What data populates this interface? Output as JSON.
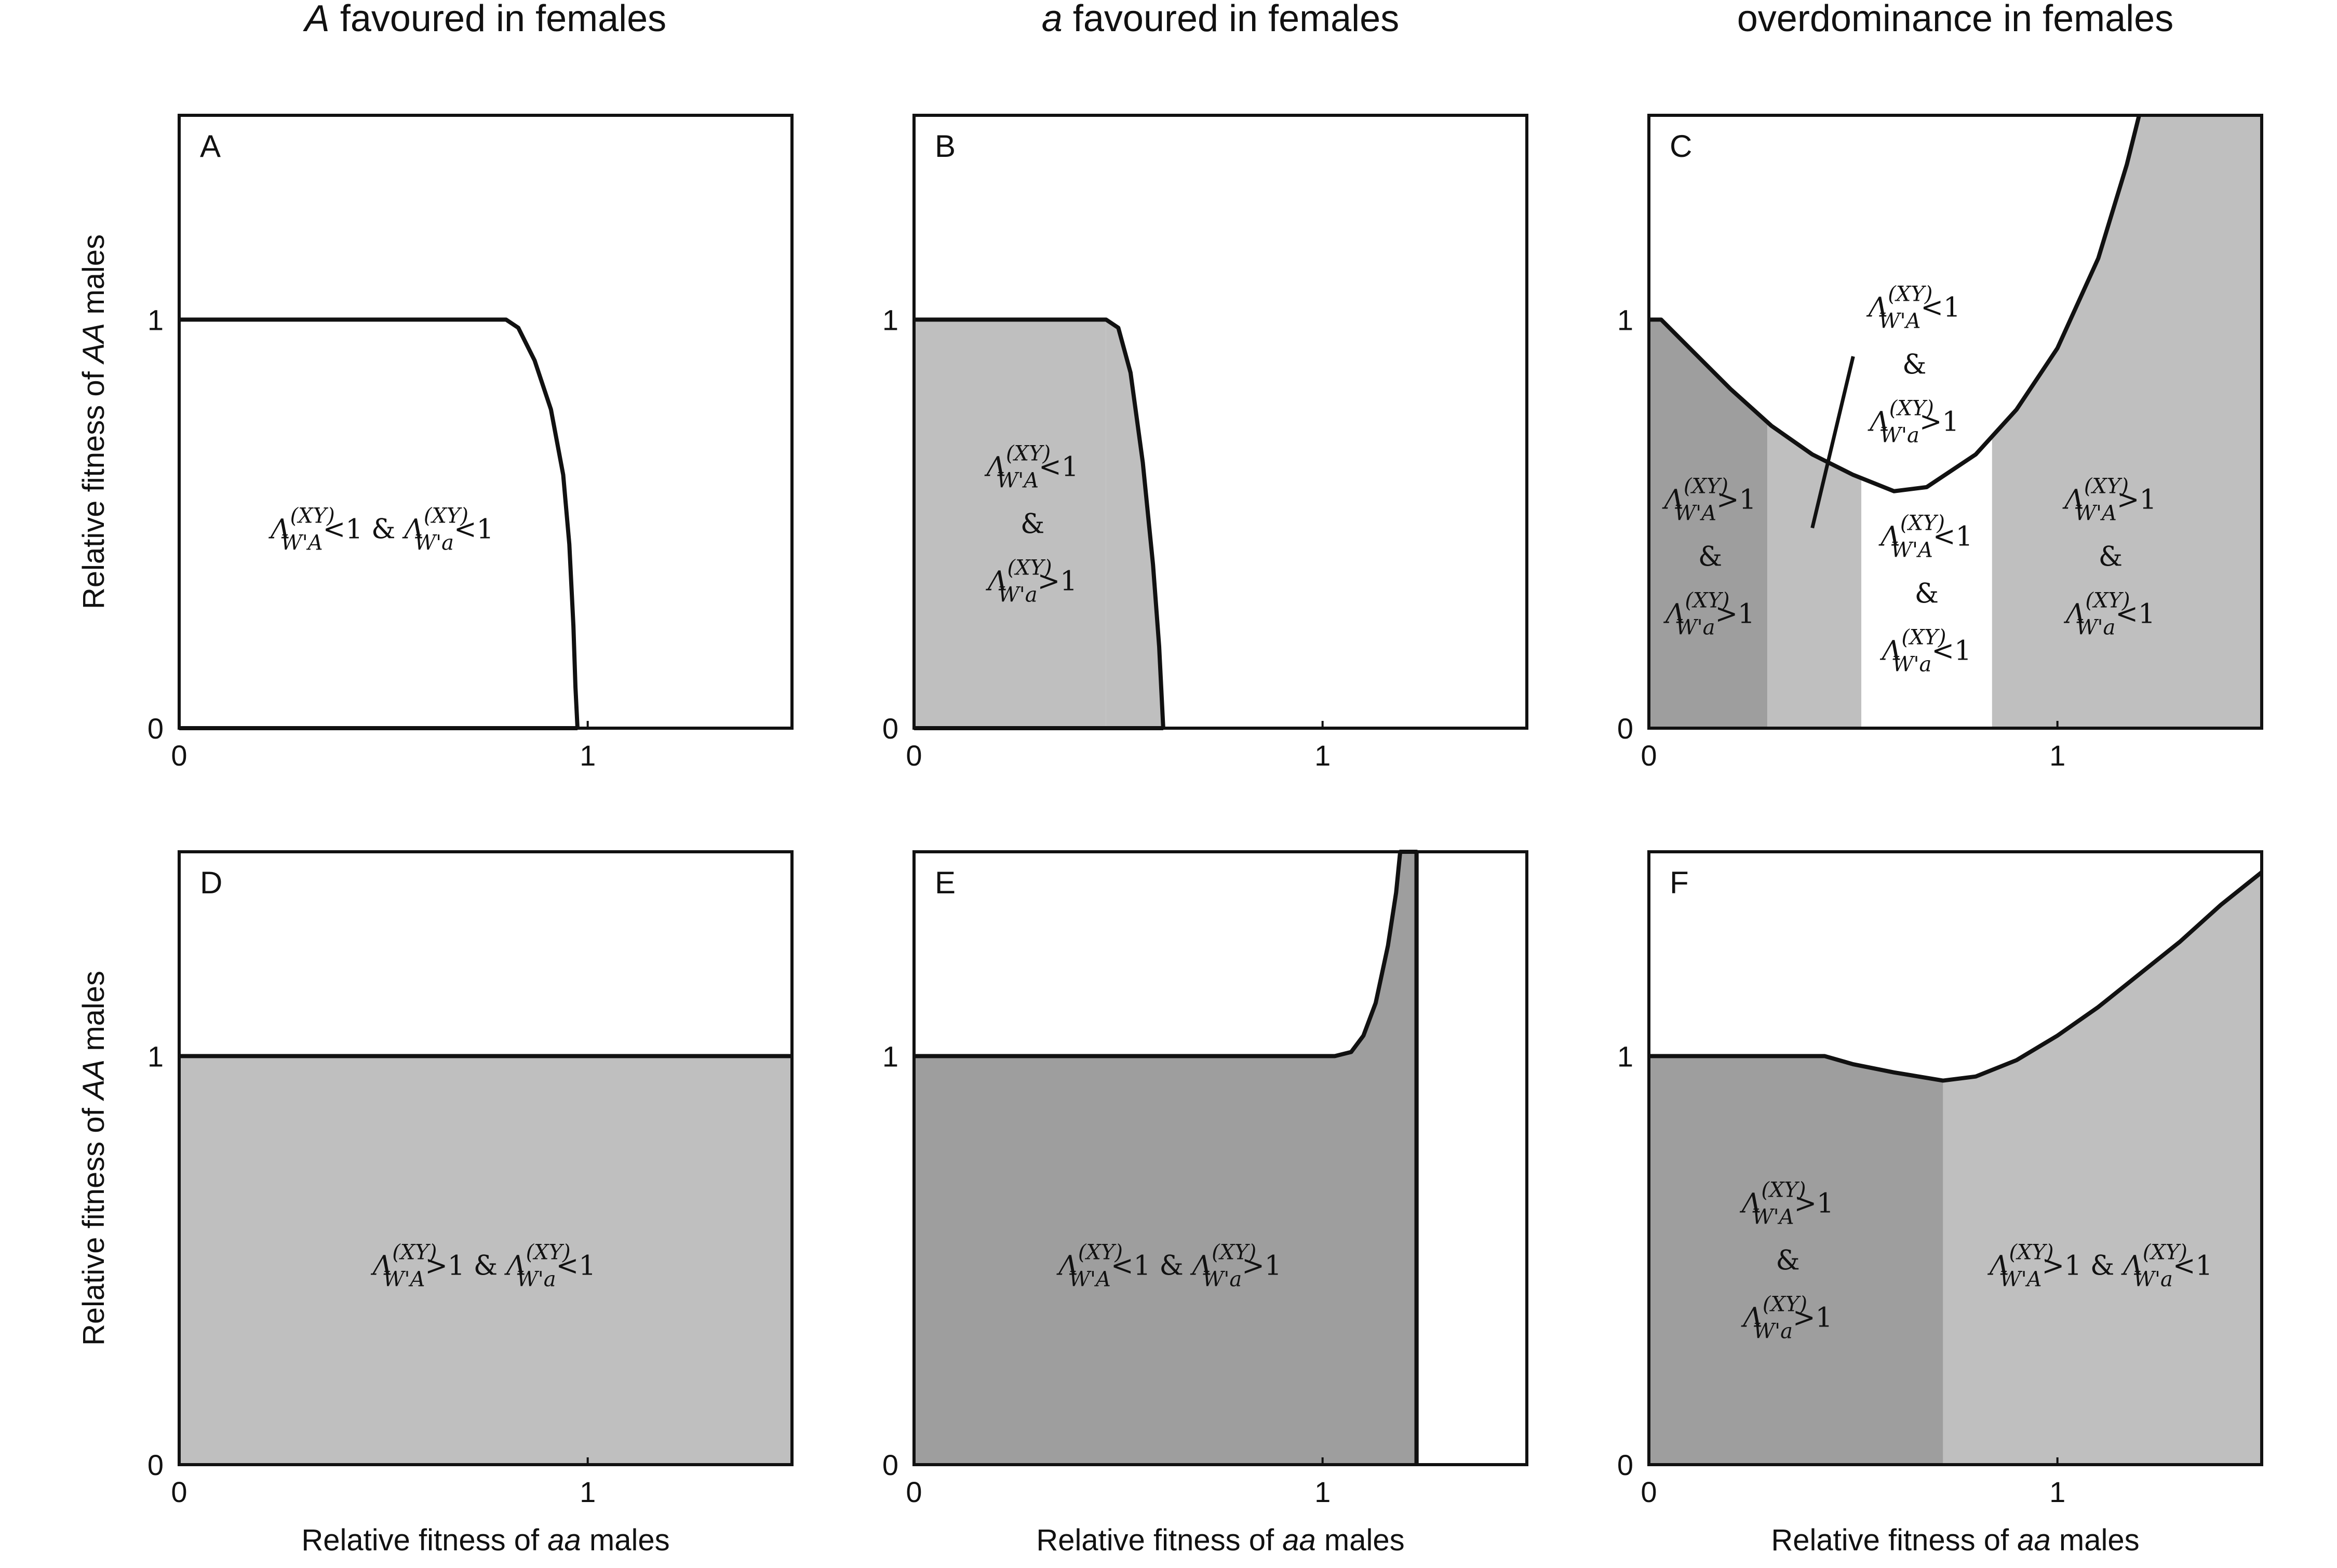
{
  "column_titles": [
    {
      "italic": "A",
      "rest": " favoured in females"
    },
    {
      "italic": "a",
      "rest": " favoured in females"
    },
    {
      "italic": "",
      "rest": "overdominance in females"
    }
  ],
  "x_axis_label": {
    "text": "Relative fitness of ",
    "italic": "aa",
    "suffix": " males"
  },
  "y_axis_label": {
    "text": "Relative fitness of ",
    "italic": "AA",
    "suffix": " males"
  },
  "x_ticks": [
    "0",
    "1"
  ],
  "y_ticks": [
    "0",
    "1"
  ],
  "colors": {
    "light_gray": "#bfbfbf",
    "dark_gray": "#9e9e9e",
    "white": "#ffffff",
    "line": "#111111"
  },
  "chart_data": [
    {
      "panel": "A",
      "type": "area",
      "xlim": [
        0,
        1.5
      ],
      "ylim": [
        0,
        1.5
      ],
      "boundary": [
        [
          0,
          1
        ],
        [
          0.8,
          1
        ],
        [
          0.83,
          0.98
        ],
        [
          0.87,
          0.9
        ],
        [
          0.91,
          0.78
        ],
        [
          0.94,
          0.62
        ],
        [
          0.955,
          0.45
        ],
        [
          0.965,
          0.25
        ],
        [
          0.97,
          0.1
        ],
        [
          0.975,
          0
        ]
      ],
      "regions": [
        {
          "x_range": [
            0,
            1.5
          ],
          "color": "white",
          "label": {
            "a": "<1",
            "joiner": " & ",
            "b": "<1"
          },
          "label_pos": [
            0.5,
            0.49
          ]
        }
      ]
    },
    {
      "panel": "B",
      "type": "area",
      "xlim": [
        0,
        1.5
      ],
      "ylim": [
        0,
        1.5
      ],
      "boundary": [
        [
          0,
          1
        ],
        [
          0.47,
          1
        ],
        [
          0.5,
          0.98
        ],
        [
          0.53,
          0.87
        ],
        [
          0.56,
          0.65
        ],
        [
          0.585,
          0.4
        ],
        [
          0.6,
          0.2
        ],
        [
          0.61,
          0
        ]
      ],
      "regions": [
        {
          "x_range": [
            0,
            0.47
          ],
          "color": "light_gray",
          "label": {
            "a": "<1",
            "joiner": "&",
            "b": ">1"
          },
          "label_pos": [
            0.29,
            0.49
          ]
        },
        {
          "x_range": [
            0.47,
            0.61
          ],
          "color": "light_gray"
        },
        {
          "x_range": [
            0.61,
            1.5
          ],
          "color": "white"
        }
      ]
    },
    {
      "panel": "C",
      "type": "area",
      "xlim": [
        0,
        1.5
      ],
      "ylim": [
        0,
        1.5
      ],
      "boundary": [
        [
          0,
          1
        ],
        [
          0.03,
          1
        ],
        [
          0.1,
          0.93
        ],
        [
          0.2,
          0.83
        ],
        [
          0.3,
          0.74
        ],
        [
          0.4,
          0.67
        ],
        [
          0.5,
          0.62
        ],
        [
          0.6,
          0.58
        ],
        [
          0.68,
          0.59
        ],
        [
          0.8,
          0.67
        ],
        [
          0.9,
          0.78
        ],
        [
          1.0,
          0.93
        ],
        [
          1.1,
          1.15
        ],
        [
          1.17,
          1.38
        ],
        [
          1.2,
          1.5
        ]
      ],
      "regions": [
        {
          "x_range": [
            0,
            0.29
          ],
          "color": "dark_gray",
          "label": {
            "a": ">1",
            "joiner": "&",
            "b": ">1"
          },
          "label_pos": [
            0.15,
            0.41
          ]
        },
        {
          "x_range": [
            0.29,
            0.52
          ],
          "color": "light_gray",
          "label": {
            "a": "<1",
            "joiner": "&",
            "b": ">1"
          },
          "label_pos": [
            0.65,
            0.88
          ]
        },
        {
          "x_range": [
            0.52,
            0.84
          ],
          "color": "white",
          "label": {
            "a": "<1",
            "joiner": "&",
            "b": "<1"
          },
          "label_pos": [
            0.68,
            0.32
          ]
        },
        {
          "x_range": [
            0.84,
            1.5
          ],
          "color": "light_gray",
          "label": {
            "a": ">1",
            "joiner": "&",
            "b": "<1"
          },
          "label_pos": [
            1.13,
            0.41
          ]
        }
      ],
      "pointer": [
        [
          0.4,
          0.49
        ],
        [
          0.5,
          0.91
        ]
      ]
    },
    {
      "panel": "D",
      "type": "area",
      "xlim": [
        0,
        1.5
      ],
      "ylim": [
        0,
        1.5
      ],
      "boundary": [
        [
          0,
          1
        ],
        [
          1.5,
          1
        ]
      ],
      "regions": [
        {
          "x_range": [
            0,
            1.5
          ],
          "color": "light_gray",
          "label": {
            "a": ">1",
            "joiner": " & ",
            "b": "<1"
          },
          "label_pos": [
            0.75,
            0.49
          ]
        }
      ]
    },
    {
      "panel": "E",
      "type": "area",
      "xlim": [
        0,
        1.5
      ],
      "ylim": [
        0,
        1.5
      ],
      "boundary": [
        [
          0,
          1
        ],
        [
          1.03,
          1
        ],
        [
          1.07,
          1.01
        ],
        [
          1.1,
          1.05
        ],
        [
          1.13,
          1.13
        ],
        [
          1.16,
          1.27
        ],
        [
          1.18,
          1.4
        ],
        [
          1.19,
          1.5
        ],
        [
          1.23,
          1.5
        ],
        [
          1.23,
          0
        ]
      ],
      "regions": [
        {
          "x_range": [
            0,
            1.23
          ],
          "color": "dark_gray",
          "label": {
            "a": "<1",
            "joiner": " & ",
            "b": ">1"
          },
          "label_pos": [
            0.63,
            0.49
          ]
        },
        {
          "x_range": [
            1.23,
            1.5
          ],
          "color": "white"
        }
      ]
    },
    {
      "panel": "F",
      "type": "area",
      "xlim": [
        0,
        1.5
      ],
      "ylim": [
        0,
        1.5
      ],
      "boundary": [
        [
          0,
          1
        ],
        [
          0.43,
          1
        ],
        [
          0.5,
          0.98
        ],
        [
          0.6,
          0.96
        ],
        [
          0.72,
          0.94
        ],
        [
          0.8,
          0.95
        ],
        [
          0.9,
          0.99
        ],
        [
          1.0,
          1.05
        ],
        [
          1.1,
          1.12
        ],
        [
          1.2,
          1.2
        ],
        [
          1.3,
          1.28
        ],
        [
          1.4,
          1.37
        ],
        [
          1.5,
          1.45
        ]
      ],
      "regions": [
        {
          "x_range": [
            0,
            0.72
          ],
          "color": "dark_gray",
          "label": {
            "a": ">1",
            "joiner": "&",
            "b": ">1"
          },
          "label_pos": [
            0.34,
            0.49
          ]
        },
        {
          "x_range": [
            0.72,
            1.5
          ],
          "color": "light_gray",
          "label": {
            "a": ">1",
            "joiner": " & ",
            "b": "<1"
          },
          "label_pos": [
            1.11,
            0.49
          ]
        }
      ]
    }
  ]
}
